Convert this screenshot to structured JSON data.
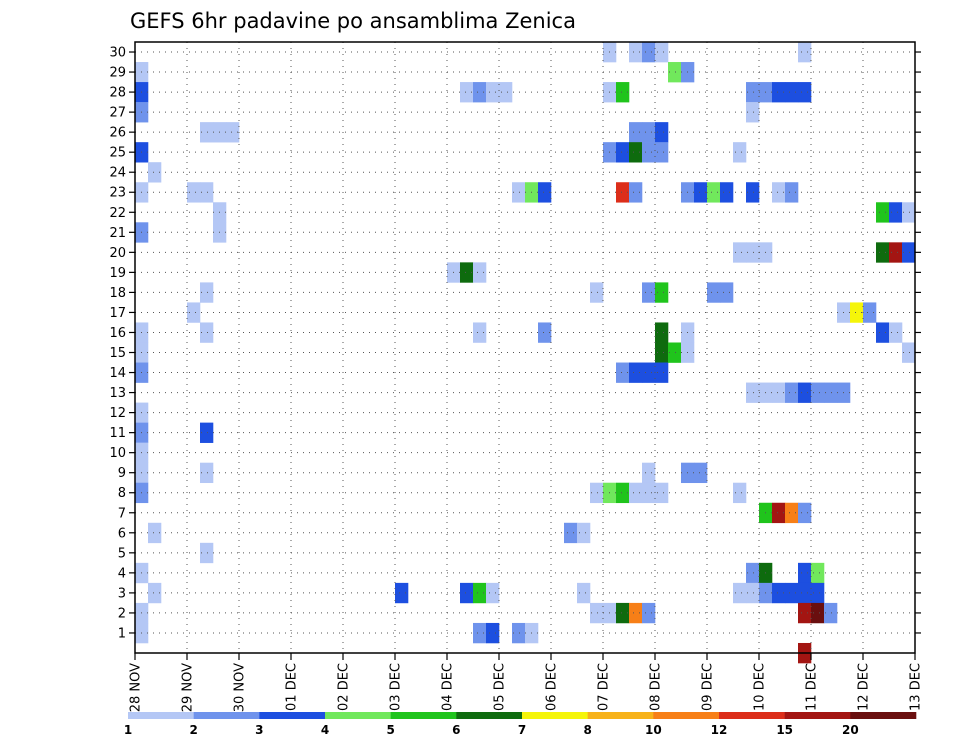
{
  "chart_data": {
    "type": "heatmap",
    "title": "GEFS 6hr padavine po ansamblima Zenica",
    "xlabel": "",
    "ylabel": "",
    "x_ticks": [
      "28 NOV",
      "29 NOV",
      "30 NOV",
      "01 DEC",
      "02 DEC",
      "03 DEC",
      "04 DEC",
      "05 DEC",
      "06 DEC",
      "07 DEC",
      "08 DEC",
      "09 DEC",
      "10 DEC",
      "11 DEC",
      "12 DEC",
      "13 DEC"
    ],
    "x_range_steps": [
      0,
      60
    ],
    "y_range": [
      0,
      30
    ],
    "y_ticks": [
      1,
      2,
      3,
      4,
      5,
      6,
      7,
      8,
      9,
      10,
      11,
      12,
      13,
      14,
      15,
      16,
      17,
      18,
      19,
      20,
      21,
      22,
      23,
      24,
      25,
      26,
      27,
      28,
      29,
      30
    ],
    "grid": true,
    "legend": {
      "placement": "bottom",
      "labels": [
        "1",
        "2",
        "3",
        "4",
        "5",
        "6",
        "7",
        "8",
        "10",
        "12",
        "15",
        "20"
      ],
      "colors": [
        "#b4c7f5",
        "#6f93ec",
        "#1d4fe0",
        "#71e85c",
        "#20c41c",
        "#0e6b0e",
        "#f5f50a",
        "#f7b21a",
        "#f77f17",
        "#dc2e1a",
        "#a31512",
        "#6a0f0f"
      ]
    },
    "cells": [
      [
        0,
        29,
        1
      ],
      [
        0,
        28,
        3
      ],
      [
        0,
        27,
        2
      ],
      [
        0,
        25,
        3
      ],
      [
        0,
        23,
        1
      ],
      [
        0,
        21,
        2
      ],
      [
        0,
        16,
        1
      ],
      [
        0,
        15,
        1
      ],
      [
        0,
        14,
        2
      ],
      [
        0,
        12,
        1
      ],
      [
        0,
        11,
        2
      ],
      [
        0,
        10,
        1
      ],
      [
        0,
        9,
        1
      ],
      [
        0,
        8,
        2
      ],
      [
        0,
        4,
        1
      ],
      [
        0,
        2,
        1
      ],
      [
        0,
        1,
        1
      ],
      [
        1,
        24,
        1
      ],
      [
        1,
        6,
        1
      ],
      [
        1,
        3,
        1
      ],
      [
        4,
        23,
        1
      ],
      [
        4,
        17,
        1
      ],
      [
        5,
        26,
        1
      ],
      [
        5,
        23,
        1
      ],
      [
        5,
        18,
        1
      ],
      [
        5,
        16,
        1
      ],
      [
        5,
        11,
        3
      ],
      [
        5,
        9,
        1
      ],
      [
        5,
        5,
        1
      ],
      [
        6,
        26,
        1
      ],
      [
        6,
        22,
        1
      ],
      [
        6,
        21,
        1
      ],
      [
        7,
        26,
        1
      ],
      [
        20,
        3,
        3
      ],
      [
        24,
        19,
        1
      ],
      [
        25,
        28,
        1
      ],
      [
        25,
        19,
        6
      ],
      [
        25,
        3,
        3
      ],
      [
        26,
        28,
        2
      ],
      [
        26,
        19,
        1
      ],
      [
        26,
        16,
        1
      ],
      [
        26,
        3,
        5
      ],
      [
        26,
        1,
        2
      ],
      [
        27,
        28,
        1
      ],
      [
        27,
        3,
        1
      ],
      [
        27,
        1,
        3
      ],
      [
        28,
        28,
        1
      ],
      [
        29,
        23,
        1
      ],
      [
        29,
        1,
        2
      ],
      [
        30,
        23,
        4
      ],
      [
        30,
        1,
        1
      ],
      [
        31,
        23,
        3
      ],
      [
        31,
        16,
        2
      ],
      [
        33,
        6,
        2
      ],
      [
        34,
        6,
        1
      ],
      [
        34,
        3,
        1
      ],
      [
        35,
        18,
        1
      ],
      [
        35,
        8,
        1
      ],
      [
        35,
        2,
        1
      ],
      [
        36,
        30,
        1
      ],
      [
        36,
        28,
        1
      ],
      [
        36,
        25,
        2
      ],
      [
        36,
        8,
        4
      ],
      [
        36,
        2,
        1
      ],
      [
        37,
        28,
        5
      ],
      [
        37,
        25,
        3
      ],
      [
        37,
        23,
        10
      ],
      [
        37,
        14,
        2
      ],
      [
        37,
        8,
        5
      ],
      [
        37,
        2,
        6
      ],
      [
        38,
        30,
        1
      ],
      [
        38,
        26,
        2
      ],
      [
        38,
        25,
        6
      ],
      [
        38,
        23,
        2
      ],
      [
        38,
        14,
        3
      ],
      [
        38,
        8,
        1
      ],
      [
        38,
        2,
        9
      ],
      [
        39,
        30,
        2
      ],
      [
        39,
        26,
        2
      ],
      [
        39,
        25,
        2
      ],
      [
        39,
        18,
        2
      ],
      [
        39,
        14,
        3
      ],
      [
        39,
        9,
        1
      ],
      [
        39,
        8,
        1
      ],
      [
        39,
        2,
        2
      ],
      [
        40,
        30,
        1
      ],
      [
        40,
        26,
        3
      ],
      [
        40,
        25,
        2
      ],
      [
        40,
        18,
        5
      ],
      [
        40,
        16,
        6
      ],
      [
        40,
        15,
        6
      ],
      [
        40,
        14,
        3
      ],
      [
        40,
        8,
        1
      ],
      [
        41,
        29,
        4
      ],
      [
        41,
        15,
        5
      ],
      [
        42,
        29,
        2
      ],
      [
        42,
        23,
        2
      ],
      [
        42,
        16,
        1
      ],
      [
        42,
        15,
        1
      ],
      [
        42,
        9,
        2
      ],
      [
        43,
        23,
        3
      ],
      [
        43,
        9,
        2
      ],
      [
        44,
        23,
        4
      ],
      [
        44,
        18,
        2
      ],
      [
        45,
        23,
        3
      ],
      [
        45,
        18,
        2
      ],
      [
        46,
        25,
        1
      ],
      [
        46,
        20,
        1
      ],
      [
        46,
        8,
        1
      ],
      [
        46,
        3,
        1
      ],
      [
        47,
        28,
        2
      ],
      [
        47,
        27,
        1
      ],
      [
        47,
        23,
        3
      ],
      [
        47,
        20,
        1
      ],
      [
        47,
        13,
        1
      ],
      [
        47,
        4,
        2
      ],
      [
        47,
        3,
        1
      ],
      [
        48,
        28,
        2
      ],
      [
        48,
        20,
        1
      ],
      [
        48,
        13,
        1
      ],
      [
        48,
        7,
        5
      ],
      [
        48,
        4,
        6
      ],
      [
        48,
        3,
        2
      ],
      [
        49,
        28,
        3
      ],
      [
        49,
        23,
        1
      ],
      [
        49,
        13,
        1
      ],
      [
        49,
        7,
        11
      ],
      [
        49,
        3,
        3
      ],
      [
        50,
        28,
        3
      ],
      [
        50,
        23,
        2
      ],
      [
        50,
        13,
        2
      ],
      [
        50,
        7,
        9
      ],
      [
        50,
        3,
        3
      ],
      [
        51,
        30,
        1
      ],
      [
        51,
        28,
        3
      ],
      [
        51,
        13,
        3
      ],
      [
        51,
        7,
        2
      ],
      [
        51,
        4,
        3
      ],
      [
        51,
        3,
        3
      ],
      [
        51,
        2,
        11
      ],
      [
        51,
        0,
        11
      ],
      [
        52,
        13,
        2
      ],
      [
        52,
        4,
        4
      ],
      [
        52,
        3,
        3
      ],
      [
        52,
        2,
        12
      ],
      [
        53,
        13,
        2
      ],
      [
        53,
        2,
        2
      ],
      [
        54,
        13,
        2
      ],
      [
        54,
        17,
        1
      ],
      [
        55,
        17,
        7
      ],
      [
        56,
        17,
        2
      ],
      [
        57,
        22,
        5
      ],
      [
        57,
        20,
        6
      ],
      [
        57,
        16,
        3
      ],
      [
        58,
        22,
        3
      ],
      [
        58,
        20,
        11
      ],
      [
        58,
        16,
        1
      ],
      [
        59,
        22,
        1
      ],
      [
        59,
        20,
        3
      ],
      [
        59,
        15,
        1
      ]
    ]
  }
}
